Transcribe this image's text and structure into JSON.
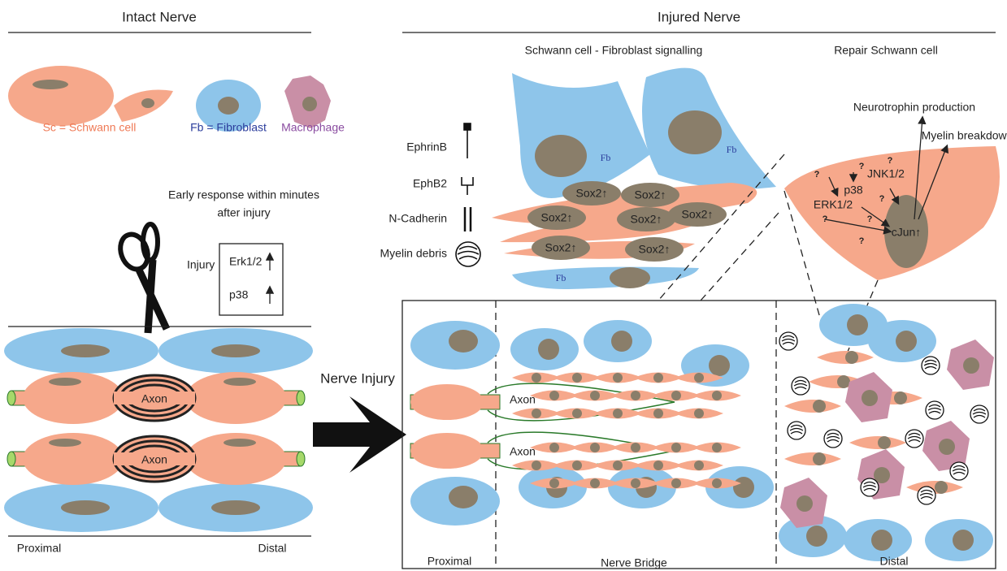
{
  "intact": {
    "title": "Intact Nerve",
    "legend": {
      "schwann": "Sc = Schwann cell",
      "fibroblast": "Fb = Fibroblast",
      "macrophage": "Macrophage"
    },
    "early_response": [
      "Early response within minutes",
      "after injury"
    ],
    "injury": "Injury",
    "markers": [
      "Erk1/2",
      "p38"
    ],
    "axons": [
      "Axon",
      "Axon"
    ],
    "proximal": "Proximal",
    "distal": "Distal"
  },
  "arrow_label": "Nerve Injury",
  "injured": {
    "title": "Injured Nerve",
    "signalling_title": "Schwann cell - Fibroblast signalling",
    "repair_title": "Repair Schwann cell",
    "key": [
      "EphrinB",
      "EphB2",
      "N-Cadherin",
      "Myelin debris"
    ],
    "fb_labels": [
      "Fb",
      "Fb",
      "Fb"
    ],
    "sox2_labels": [
      "Sox2↑",
      "Sox2↑",
      "Sox2↑",
      "Sox2↑",
      "Sox2↑",
      "Sox2↑",
      "Sox2↑"
    ],
    "repair": {
      "neurotrophin": "Neurotrophin production",
      "myelin": "Myelin breakdown",
      "erk": "ERK1/2",
      "p38": "p38",
      "jnk": "JNK1/2",
      "cjun": "cJun↑",
      "unknown": "?"
    },
    "axons": [
      "Axon",
      "Axon"
    ],
    "proximal": "Proximal",
    "bridge": "Nerve Bridge",
    "distal": "Distal"
  }
}
